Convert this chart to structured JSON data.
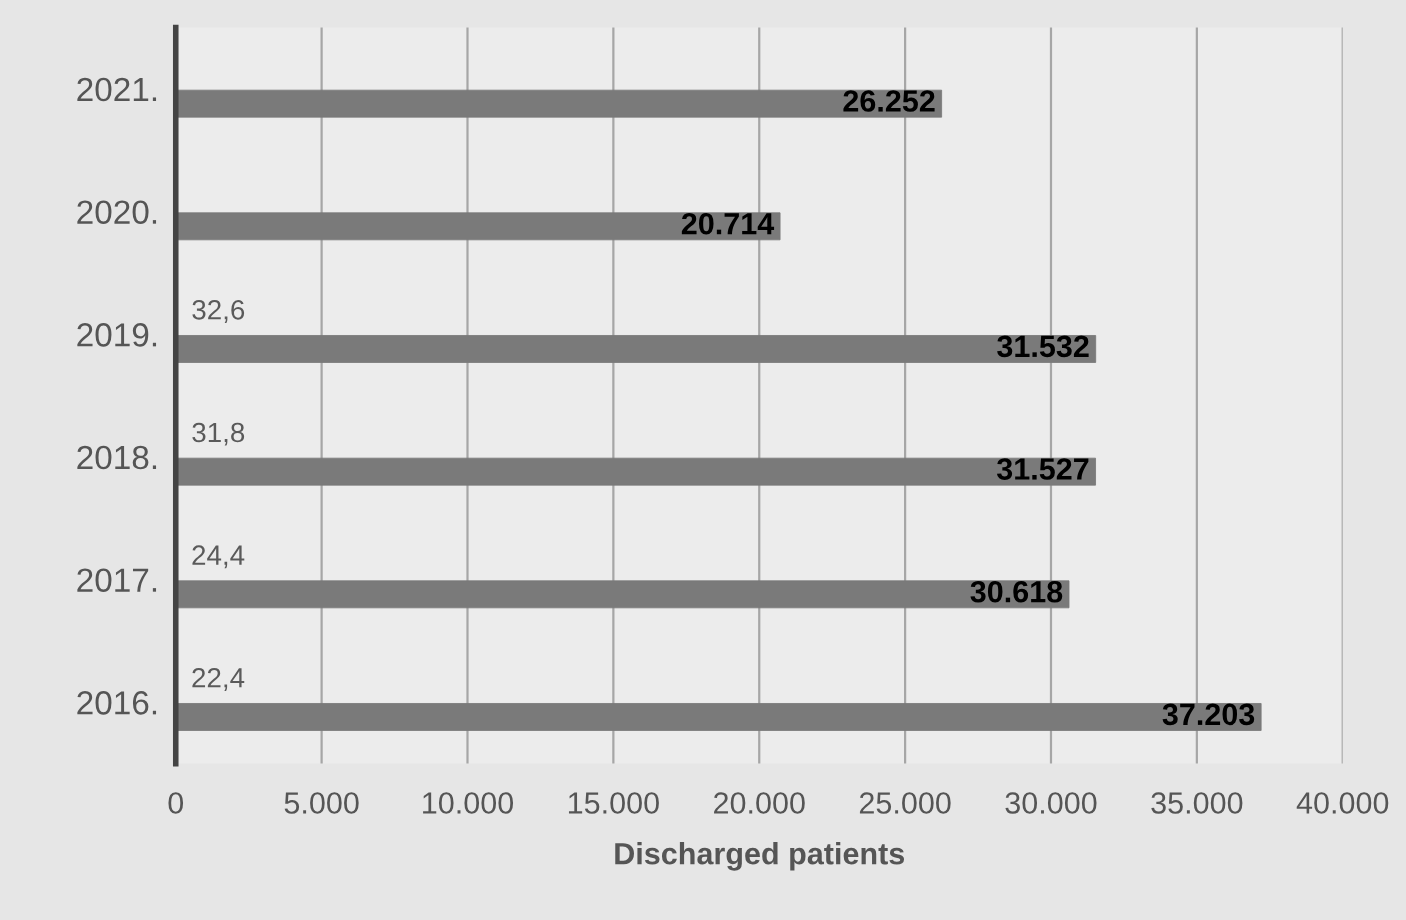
{
  "chart_data": {
    "type": "bar",
    "orientation": "horizontal",
    "xlabel": "Discharged patients",
    "categories": [
      "2021.",
      "2020.",
      "2019.",
      "2018.",
      "2017.",
      "2016."
    ],
    "series": [
      {
        "color": "#7a7a7a",
        "values": [
          26252,
          20714,
          31532,
          31527,
          30618,
          37203
        ],
        "value_labels": [
          "26.252",
          "20.714",
          "31.532",
          "31.527",
          "30.618",
          "37.203"
        ]
      },
      {
        "color": "#d9d9d9",
        "values": [
          null,
          null,
          32.6,
          31.8,
          24.4,
          22.4
        ],
        "value_labels": [
          null,
          null,
          "32,6",
          "31,8",
          "24,4",
          "22,4"
        ]
      }
    ],
    "xlim": [
      0,
      40000
    ],
    "xticks": [
      0,
      {
        "value": 5000,
        "label": "5.000"
      },
      {
        "value": 10000,
        "label": "10.000"
      },
      {
        "value": 15000,
        "label": "15.000"
      },
      {
        "value": 20000,
        "label": "20.000"
      },
      {
        "value": 25000,
        "label": "25.000"
      },
      {
        "value": 30000,
        "label": "30.000"
      },
      {
        "value": 35000,
        "label": "35.000"
      },
      {
        "value": 40000,
        "label": "40.000"
      }
    ],
    "grid": "x"
  }
}
